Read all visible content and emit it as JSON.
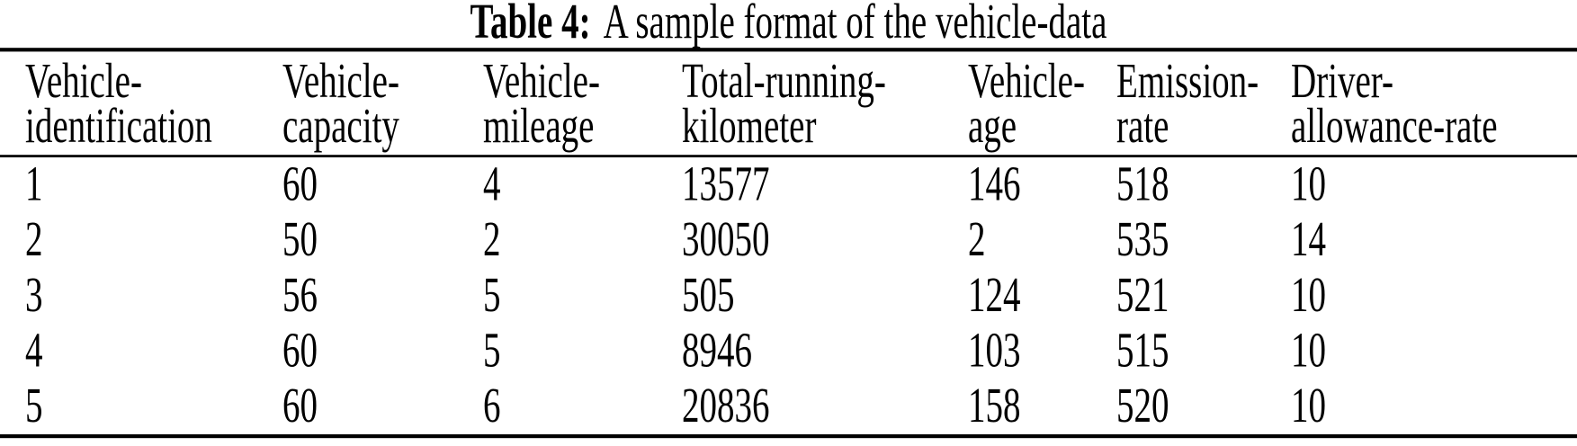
{
  "caption": {
    "label": "Table 4:",
    "text": "A sample format of the vehicle-data"
  },
  "table": {
    "columns": [
      {
        "name": "Vehicle-identification",
        "line1": "Vehicle-",
        "line2": "identification"
      },
      {
        "name": "Vehicle-capacity",
        "line1": "Vehicle-",
        "line2": "capacity"
      },
      {
        "name": "Vehicle-mileage",
        "line1": "Vehicle-",
        "line2": "mileage"
      },
      {
        "name": "Total-running-kilometer",
        "line1": "Total-running-",
        "line2": "kilometer"
      },
      {
        "name": "Vehicle-age",
        "line1": "Vehicle-",
        "line2": "age"
      },
      {
        "name": "Emission-rate",
        "line1": "Emission-",
        "line2": "rate"
      },
      {
        "name": "Driver-allowance-rate",
        "line1": "Driver-",
        "line2": "allowance-rate"
      }
    ],
    "rows": [
      [
        "1",
        "60",
        "4",
        "13577",
        "146",
        "518",
        "10"
      ],
      [
        "2",
        "50",
        "2",
        "30050",
        "2",
        "535",
        "14"
      ],
      [
        "3",
        "56",
        "5",
        "505",
        "124",
        "521",
        "10"
      ],
      [
        "4",
        "60",
        "5",
        "8946",
        "103",
        "515",
        "10"
      ],
      [
        "5",
        "60",
        "6",
        "20836",
        "158",
        "520",
        "10"
      ]
    ]
  },
  "colors": {
    "text": "#000000",
    "background": "#ffffff",
    "rule": "#000000"
  }
}
